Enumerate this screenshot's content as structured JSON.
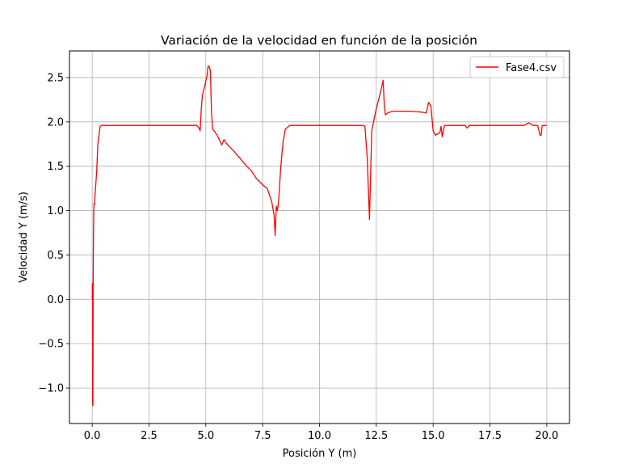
{
  "chart_data": {
    "type": "line",
    "title": "Variación de la velocidad en función de la posición",
    "xlabel": "Posición Y (m)",
    "ylabel": "Velocidad Y (m/s)",
    "xlim": [
      -1.0,
      21.0
    ],
    "ylim": [
      -1.4,
      2.8
    ],
    "grid": true,
    "legend_position": "top-right",
    "x_ticks": [
      0.0,
      2.5,
      5.0,
      7.5,
      10.0,
      12.5,
      15.0,
      17.5,
      20.0
    ],
    "x_tick_labels": [
      "0.0",
      "2.5",
      "5.0",
      "7.5",
      "10.0",
      "12.5",
      "15.0",
      "17.5",
      "20.0"
    ],
    "y_ticks": [
      -1.0,
      -0.5,
      0.0,
      0.5,
      1.0,
      1.5,
      2.0,
      2.5
    ],
    "y_tick_labels": [
      "−1.0",
      "−0.5",
      "0.0",
      "0.5",
      "1.0",
      "1.5",
      "2.0",
      "2.5"
    ],
    "series": [
      {
        "name": "Fase4.csv",
        "color": "#ff0000",
        "x": [
          0.0,
          0.01,
          0.02,
          0.02,
          0.03,
          0.03,
          0.04,
          0.05,
          0.06,
          0.07,
          0.08,
          0.1,
          0.13,
          0.16,
          0.2,
          0.25,
          0.3,
          0.35,
          0.4,
          0.5,
          1.0,
          2.0,
          3.0,
          4.0,
          4.6,
          4.7,
          4.75,
          4.8,
          4.85,
          4.95,
          5.05,
          5.1,
          5.15,
          5.2,
          5.25,
          5.3,
          5.5,
          5.7,
          5.8,
          5.9,
          6.0,
          6.2,
          6.4,
          6.6,
          6.8,
          7.0,
          7.2,
          7.5,
          7.7,
          7.9,
          8.0,
          8.05,
          8.1,
          8.15,
          8.2,
          8.3,
          8.4,
          8.5,
          8.7,
          9.0,
          10.0,
          11.0,
          11.9,
          12.0,
          12.1,
          12.2,
          12.3,
          12.5,
          12.7,
          12.8,
          12.85,
          12.9,
          13.0,
          13.2,
          13.5,
          14.0,
          14.5,
          14.7,
          14.8,
          14.9,
          15.0,
          15.1,
          15.3,
          15.35,
          15.4,
          15.5,
          15.7,
          16.0,
          16.4,
          16.5,
          16.6,
          17.0,
          18.0,
          19.0,
          19.2,
          19.4,
          19.6,
          19.7,
          19.75,
          19.8,
          19.9,
          20.0
        ],
        "y": [
          0.0,
          0.18,
          0.15,
          -1.15,
          -1.2,
          -1.2,
          0.1,
          0.5,
          0.8,
          1.0,
          1.08,
          1.07,
          1.2,
          1.3,
          1.45,
          1.75,
          1.85,
          1.95,
          1.96,
          1.96,
          1.96,
          1.96,
          1.96,
          1.96,
          1.96,
          1.93,
          1.9,
          2.15,
          2.3,
          2.4,
          2.52,
          2.63,
          2.62,
          2.58,
          2.1,
          1.92,
          1.85,
          1.74,
          1.8,
          1.76,
          1.73,
          1.68,
          1.62,
          1.56,
          1.5,
          1.45,
          1.37,
          1.29,
          1.25,
          1.1,
          0.95,
          0.72,
          1.05,
          1.0,
          1.1,
          1.5,
          1.78,
          1.92,
          1.96,
          1.96,
          1.96,
          1.96,
          1.96,
          1.95,
          1.6,
          0.9,
          1.9,
          2.15,
          2.35,
          2.47,
          2.2,
          2.08,
          2.1,
          2.12,
          2.12,
          2.12,
          2.11,
          2.1,
          2.22,
          2.18,
          1.9,
          1.85,
          1.88,
          1.95,
          1.83,
          1.96,
          1.96,
          1.96,
          1.96,
          1.93,
          1.96,
          1.96,
          1.96,
          1.96,
          1.99,
          1.96,
          1.96,
          1.85,
          1.85,
          1.96,
          1.96,
          1.96
        ]
      }
    ]
  }
}
